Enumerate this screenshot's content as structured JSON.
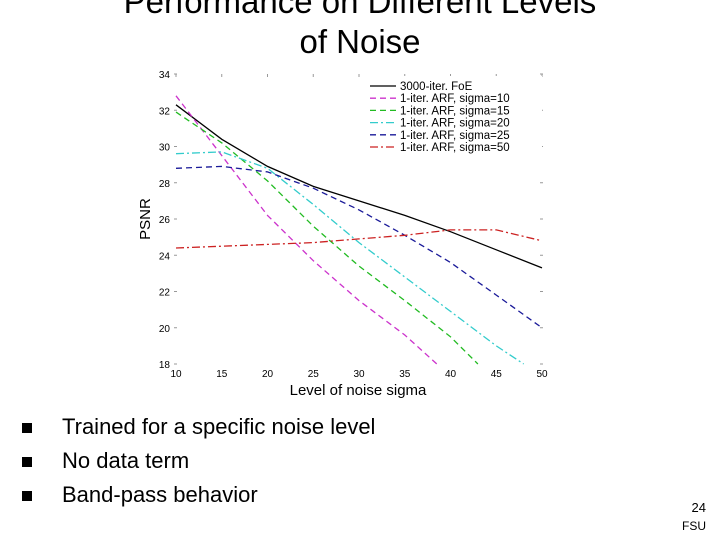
{
  "slide": {
    "title_lines": [
      "Performance on Different Levels",
      "of Noise"
    ],
    "bullets": [
      "Trained for a specific noise level",
      "No data term",
      "Band-pass behavior"
    ],
    "page_number": "24",
    "org": "FSU"
  },
  "chart_data": {
    "type": "line",
    "title": "",
    "xlabel": "Level of noise sigma",
    "ylabel": "PSNR",
    "xlim": [
      10,
      50
    ],
    "ylim": [
      18,
      34
    ],
    "xticks": [
      10,
      15,
      20,
      25,
      30,
      35,
      40,
      45,
      50
    ],
    "yticks": [
      18,
      20,
      22,
      24,
      26,
      28,
      30,
      32,
      34
    ],
    "grid": false,
    "legend_position": "top-right",
    "series": [
      {
        "name": "3000-iter. FoE",
        "color": "#000000",
        "dash": "solid",
        "x": [
          10,
          15,
          20,
          25,
          30,
          35,
          40,
          45,
          50
        ],
        "y": [
          32.3,
          30.4,
          28.9,
          27.8,
          27.0,
          26.2,
          25.3,
          24.3,
          23.3
        ]
      },
      {
        "name": "1-iter. ARF, sigma=10",
        "color": "#cc33cc",
        "dash": "dashed",
        "x": [
          10,
          15,
          20,
          25,
          30,
          35,
          38.5
        ],
        "y": [
          32.8,
          29.5,
          26.2,
          23.7,
          21.5,
          19.6,
          18.0
        ]
      },
      {
        "name": "1-iter. ARF, sigma=15",
        "color": "#22bb22",
        "dash": "dashed",
        "x": [
          10,
          15,
          20,
          25,
          30,
          35,
          40,
          43
        ],
        "y": [
          31.9,
          30.2,
          28.1,
          25.6,
          23.4,
          21.5,
          19.5,
          18.0
        ]
      },
      {
        "name": "1-iter. ARF, sigma=20",
        "color": "#33cccc",
        "dash": "dashdot",
        "x": [
          10,
          15,
          20,
          25,
          30,
          35,
          40,
          45,
          48
        ],
        "y": [
          29.6,
          29.7,
          28.8,
          26.8,
          24.7,
          22.8,
          20.9,
          19.0,
          18.0
        ]
      },
      {
        "name": "1-iter. ARF, sigma=25",
        "color": "#1a1a99",
        "dash": "dashed",
        "x": [
          10,
          15,
          20,
          25,
          30,
          35,
          40,
          45,
          50
        ],
        "y": [
          28.8,
          28.9,
          28.6,
          27.7,
          26.5,
          25.1,
          23.6,
          21.8,
          20.0
        ]
      },
      {
        "name": "1-iter. ARF, sigma=50",
        "color": "#cc2222",
        "dash": "dashdot",
        "x": [
          10,
          15,
          20,
          25,
          30,
          35,
          40,
          45,
          50
        ],
        "y": [
          24.4,
          24.5,
          24.6,
          24.7,
          24.9,
          25.1,
          25.4,
          25.4,
          24.8
        ]
      }
    ]
  }
}
